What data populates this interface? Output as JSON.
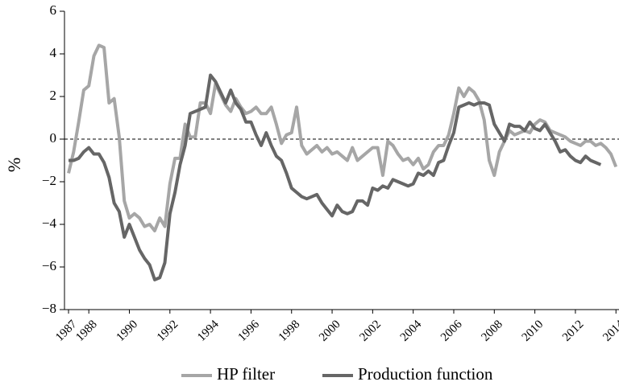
{
  "chart_data": {
    "type": "line",
    "y_label": "%",
    "x": [
      1987,
      1987.25,
      1987.5,
      1987.75,
      1988,
      1988.25,
      1988.5,
      1988.75,
      1989,
      1989.25,
      1989.5,
      1989.75,
      1990,
      1990.25,
      1990.5,
      1990.75,
      1991,
      1991.25,
      1991.5,
      1991.75,
      1992,
      1992.25,
      1992.5,
      1992.75,
      1993,
      1993.25,
      1993.5,
      1993.75,
      1994,
      1994.25,
      1994.5,
      1994.75,
      1995,
      1995.25,
      1995.5,
      1995.75,
      1996,
      1996.25,
      1996.5,
      1996.75,
      1997,
      1997.25,
      1997.5,
      1997.75,
      1998,
      1998.25,
      1998.5,
      1998.75,
      1999,
      1999.25,
      1999.5,
      1999.75,
      2000,
      2000.25,
      2000.5,
      2000.75,
      2001,
      2001.25,
      2001.5,
      2001.75,
      2002,
      2002.25,
      2002.5,
      2002.75,
      2003,
      2003.25,
      2003.5,
      2003.75,
      2004,
      2004.25,
      2004.5,
      2004.75,
      2005,
      2005.25,
      2005.5,
      2005.75,
      2006,
      2006.25,
      2006.5,
      2006.75,
      2007,
      2007.25,
      2007.5,
      2007.75,
      2008,
      2008.25,
      2008.5,
      2008.75,
      2009,
      2009.25,
      2009.5,
      2009.75,
      2010,
      2010.25,
      2010.5,
      2010.75,
      2011,
      2011.25,
      2011.5,
      2011.75,
      2012,
      2012.25,
      2012.5,
      2012.75,
      2013,
      2013.25,
      2013.5,
      2013.75,
      2014
    ],
    "series": [
      {
        "name": "HP filter",
        "color": "#a6a6a6",
        "values": [
          -1.6,
          -0.6,
          0.8,
          2.3,
          2.5,
          3.9,
          4.4,
          4.3,
          1.7,
          1.9,
          0.1,
          -2.9,
          -3.7,
          -3.5,
          -3.7,
          -4.1,
          -4.0,
          -4.3,
          -3.7,
          -4.1,
          -2.1,
          -0.9,
          -0.9,
          0.7,
          0.1,
          0.1,
          1.7,
          1.7,
          1.2,
          2.6,
          2.1,
          1.6,
          1.3,
          1.9,
          1.5,
          1.2,
          1.3,
          1.5,
          1.2,
          1.2,
          1.5,
          0.7,
          -0.2,
          0.2,
          0.3,
          1.5,
          -0.3,
          -0.7,
          -0.5,
          -0.3,
          -0.6,
          -0.4,
          -0.7,
          -0.6,
          -0.8,
          -1.0,
          -0.4,
          -1.0,
          -0.8,
          -0.6,
          -0.4,
          -0.4,
          -1.7,
          -0.1,
          -0.3,
          -0.7,
          -1.0,
          -0.9,
          -1.2,
          -0.9,
          -1.4,
          -1.2,
          -0.6,
          -0.3,
          -0.3,
          0.2,
          1.2,
          2.4,
          2.0,
          2.4,
          2.2,
          1.8,
          0.9,
          -1.0,
          -1.7,
          -0.6,
          -0.1,
          0.4,
          0.2,
          0.3,
          0.4,
          0.3,
          0.7,
          0.9,
          0.8,
          0.4,
          0.3,
          0.2,
          0.1,
          -0.1,
          -0.2,
          -0.3,
          -0.1,
          -0.1,
          -0.3,
          -0.2,
          -0.4,
          -0.7,
          -1.3
        ]
      },
      {
        "name": "Production function",
        "color": "#666666",
        "values": [
          -1.0,
          -1.0,
          -0.9,
          -0.6,
          -0.4,
          -0.7,
          -0.7,
          -1.1,
          -1.8,
          -3.0,
          -3.4,
          -4.6,
          -4.0,
          -4.6,
          -5.2,
          -5.6,
          -5.9,
          -6.6,
          -6.5,
          -5.8,
          -3.5,
          -2.5,
          -1.2,
          -0.3,
          1.2,
          1.3,
          1.4,
          1.5,
          3.0,
          2.7,
          2.2,
          1.7,
          2.3,
          1.7,
          1.4,
          0.8,
          0.8,
          0.2,
          -0.3,
          0.3,
          -0.3,
          -0.8,
          -1.0,
          -1.6,
          -2.3,
          -2.5,
          -2.7,
          -2.8,
          -2.7,
          -2.6,
          -3.0,
          -3.3,
          -3.6,
          -3.1,
          -3.4,
          -3.5,
          -3.4,
          -2.9,
          -2.9,
          -3.1,
          -2.3,
          -2.4,
          -2.2,
          -2.3,
          -1.9,
          -2.0,
          -2.1,
          -2.2,
          -2.1,
          -1.6,
          -1.7,
          -1.5,
          -1.7,
          -1.1,
          -1.0,
          -0.3,
          0.3,
          1.5,
          1.6,
          1.7,
          1.6,
          1.7,
          1.7,
          1.6,
          0.7,
          0.3,
          -0.1,
          0.7,
          0.6,
          0.6,
          0.4,
          0.8,
          0.5,
          0.4,
          0.7,
          0.3,
          -0.1,
          -0.6,
          -0.5,
          -0.8,
          -1.0,
          -1.1,
          -0.8,
          -1.0,
          -1.1,
          -1.2,
          null,
          null,
          null
        ]
      }
    ],
    "xlim": [
      1986.8,
      2014.15
    ],
    "xticks": [
      1987,
      1988,
      1990,
      1992,
      1994,
      1996,
      1998,
      2000,
      2002,
      2004,
      2006,
      2008,
      2010,
      2012,
      2014
    ],
    "ylim": [
      -8,
      6
    ],
    "yticks": [
      {
        "value": -8,
        "label": "−8"
      },
      {
        "value": -6,
        "label": "−6"
      },
      {
        "value": -4,
        "label": "−4"
      },
      {
        "value": -2,
        "label": "−2"
      },
      0,
      2,
      4,
      6
    ],
    "reference_line": 0,
    "legend": "bottom"
  }
}
